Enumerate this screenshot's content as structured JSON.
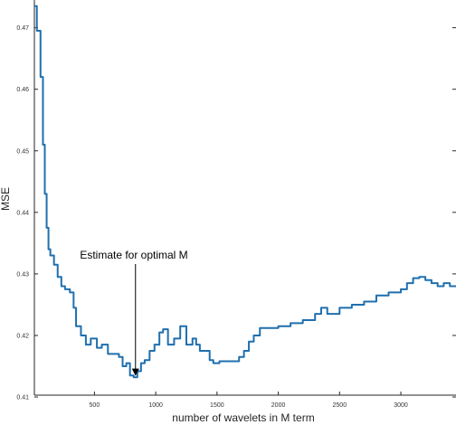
{
  "chart_data": {
    "type": "line",
    "xlabel": "number of wavelets in M term",
    "ylabel": "MSE",
    "xlim": [
      10,
      3450
    ],
    "ylim": [
      0.4103,
      0.4745
    ],
    "x_ticks": [
      500,
      1000,
      1500,
      2000,
      2500,
      3000
    ],
    "x_tick_labels": [
      "500",
      "1000",
      "1500",
      "2000",
      "2500",
      "3000"
    ],
    "y_ticks": [
      0.41,
      0.42,
      0.43,
      0.44,
      0.45,
      0.46,
      0.47
    ],
    "y_tick_labels": [
      "0.41",
      "0.42",
      "0.43",
      "0.44",
      "0.45",
      "0.46",
      "0.47"
    ],
    "grid": false,
    "colors": {
      "line": "#1f6fae",
      "axes": "#262626",
      "annotation": "#000000"
    },
    "series": [
      {
        "x": [
          10,
          30,
          60,
          80,
          95,
          110,
          125,
          140,
          170,
          200,
          230,
          260,
          300,
          330,
          350,
          390,
          430,
          470,
          520,
          560,
          610,
          660,
          700,
          730,
          760,
          790,
          820,
          850,
          880,
          910,
          950,
          990,
          1030,
          1060,
          1100,
          1150,
          1200,
          1250,
          1300,
          1330,
          1360,
          1400,
          1440,
          1470,
          1520,
          1600,
          1680,
          1720,
          1760,
          1800,
          1850,
          1900,
          2000,
          2100,
          2200,
          2300,
          2350,
          2400,
          2500,
          2600,
          2700,
          2800,
          2900,
          3000,
          3050,
          3100,
          3150,
          3200,
          3250,
          3300,
          3350,
          3400,
          3450
        ],
        "y": [
          0.4735,
          0.4695,
          0.462,
          0.451,
          0.443,
          0.4375,
          0.434,
          0.433,
          0.4315,
          0.4295,
          0.428,
          0.4275,
          0.427,
          0.4245,
          0.4215,
          0.42,
          0.4185,
          0.4195,
          0.418,
          0.4185,
          0.417,
          0.417,
          0.4165,
          0.415,
          0.4155,
          0.4135,
          0.4132,
          0.4142,
          0.4155,
          0.416,
          0.4175,
          0.4185,
          0.4205,
          0.421,
          0.4185,
          0.4195,
          0.4215,
          0.4185,
          0.4195,
          0.4185,
          0.4175,
          0.4175,
          0.416,
          0.4155,
          0.4158,
          0.4158,
          0.4165,
          0.4175,
          0.419,
          0.42,
          0.4212,
          0.4212,
          0.4215,
          0.422,
          0.4225,
          0.4235,
          0.4245,
          0.4235,
          0.4245,
          0.425,
          0.4255,
          0.4265,
          0.427,
          0.4275,
          0.4285,
          0.4293,
          0.4295,
          0.429,
          0.4285,
          0.428,
          0.4285,
          0.428,
          0.428
        ]
      }
    ],
    "annotations": [
      {
        "text": "Estimate for optimal M",
        "x": 835,
        "y": 0.4133
      }
    ]
  }
}
